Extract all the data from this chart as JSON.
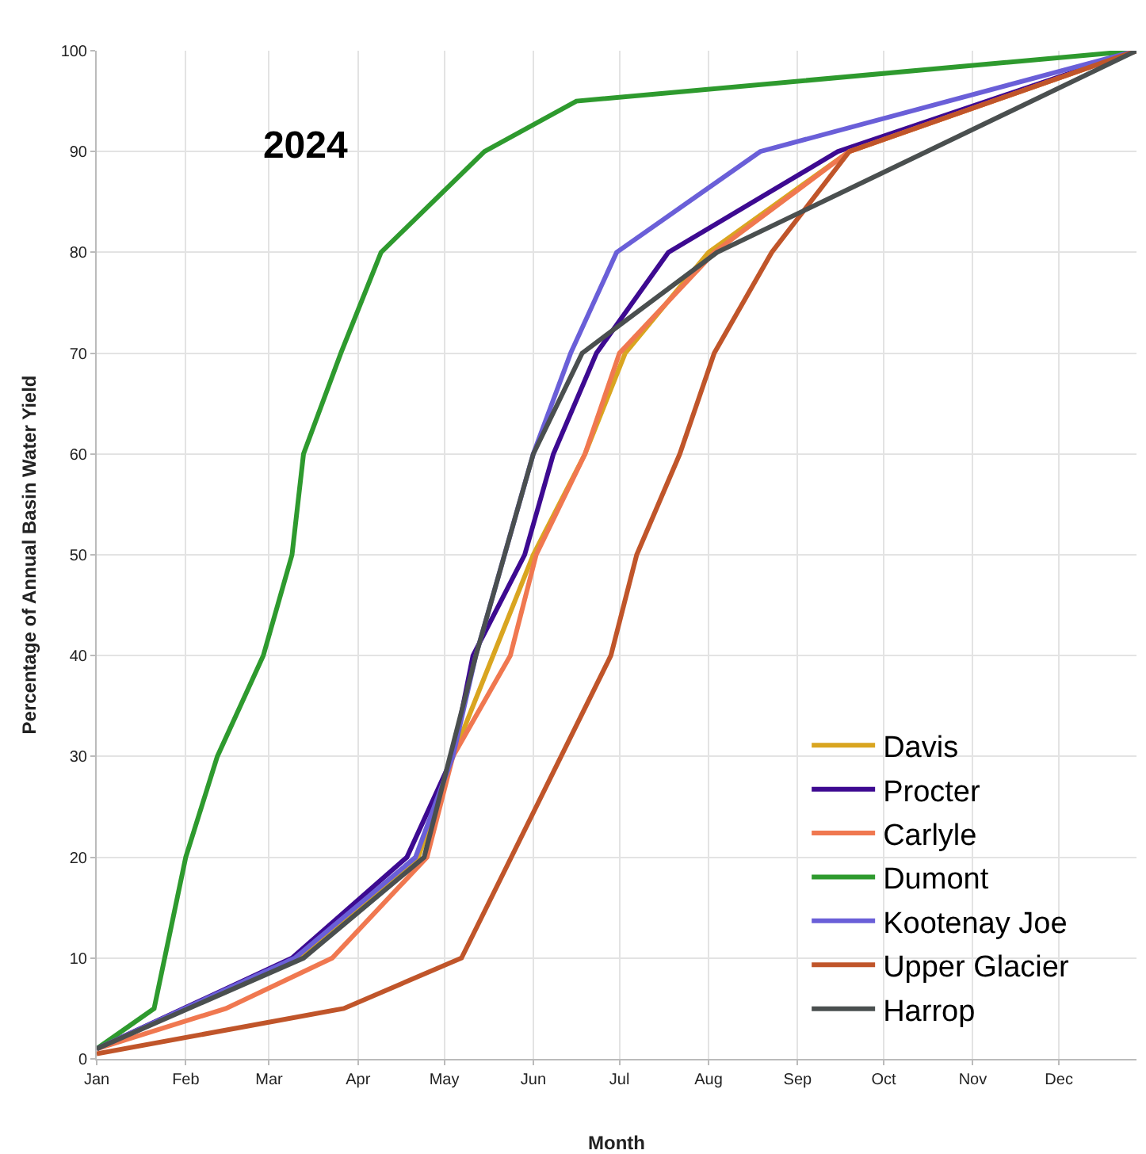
{
  "chart_data": {
    "type": "line",
    "title": "2024",
    "xlabel": "Month",
    "ylabel": "Percentage of Annual Basin Water Yield",
    "xlim": [
      "2024-01-01",
      "2024-12-28"
    ],
    "xticks": [
      {
        "value": "2024-01-01",
        "label": "Jan"
      },
      {
        "value": "2024-02-01",
        "label": "Feb"
      },
      {
        "value": "2024-03-01",
        "label": "Mar"
      },
      {
        "value": "2024-04-01",
        "label": "Apr"
      },
      {
        "value": "2024-05-01",
        "label": "May"
      },
      {
        "value": "2024-06-01",
        "label": "Jun"
      },
      {
        "value": "2024-07-01",
        "label": "Jul"
      },
      {
        "value": "2024-08-01",
        "label": "Aug"
      },
      {
        "value": "2024-09-01",
        "label": "Sep"
      },
      {
        "value": "2024-10-01",
        "label": "Oct"
      },
      {
        "value": "2024-11-01",
        "label": "Nov"
      },
      {
        "value": "2024-12-01",
        "label": "Dec"
      }
    ],
    "ylim": [
      0,
      100
    ],
    "yticks": [
      0,
      10,
      20,
      30,
      40,
      50,
      60,
      70,
      80,
      90,
      100
    ],
    "grid": true,
    "legend": "bottom right",
    "marker": "none",
    "line_style": "solid",
    "series": [
      {
        "name": "Davis",
        "color": "#d9a520",
        "x": [
          "2024-01-01",
          "2024-03-11",
          "2024-04-22",
          "2024-05-04",
          "2024-06-01",
          "2024-06-19",
          "2024-07-03",
          "2024-08-01",
          "2024-09-19",
          "2024-12-28"
        ],
        "values": [
          1,
          10,
          20,
          30,
          50,
          60,
          70,
          80,
          90,
          100
        ]
      },
      {
        "name": "Procter",
        "color": "#3d0a91",
        "x": [
          "2024-01-01",
          "2024-03-09",
          "2024-04-18",
          "2024-05-04",
          "2024-05-11",
          "2024-05-29",
          "2024-06-08",
          "2024-06-23",
          "2024-07-18",
          "2024-09-15",
          "2024-12-28"
        ],
        "values": [
          1,
          10,
          20,
          30,
          40,
          50,
          60,
          70,
          80,
          90,
          100
        ]
      },
      {
        "name": "Carlyle",
        "color": "#f07850",
        "x": [
          "2024-01-01",
          "2024-02-15",
          "2024-03-23",
          "2024-04-25",
          "2024-05-04",
          "2024-05-24",
          "2024-06-02",
          "2024-06-19",
          "2024-07-01",
          "2024-08-03",
          "2024-09-19",
          "2024-12-28"
        ],
        "values": [
          1,
          5,
          10,
          20,
          30,
          40,
          50,
          60,
          70,
          80,
          90,
          100
        ]
      },
      {
        "name": "Dumont",
        "color": "#2e9a2e",
        "x": [
          "2024-01-01",
          "2024-01-21",
          "2024-02-01",
          "2024-02-12",
          "2024-02-28",
          "2024-03-09",
          "2024-03-13",
          "2024-03-26",
          "2024-04-09",
          "2024-05-15",
          "2024-06-16",
          "2024-12-28"
        ],
        "values": [
          1,
          5,
          20,
          30,
          40,
          50,
          60,
          70,
          80,
          90,
          95,
          100
        ]
      },
      {
        "name": "Kootenay Joe",
        "color": "#6a5fd8",
        "x": [
          "2024-01-01",
          "2024-03-10",
          "2024-04-21",
          "2024-05-04",
          "2024-05-12",
          "2024-06-01",
          "2024-06-14",
          "2024-06-30",
          "2024-08-19",
          "2024-12-28"
        ],
        "values": [
          1,
          10,
          20,
          30,
          40,
          60,
          70,
          80,
          90,
          100
        ]
      },
      {
        "name": "Upper Glacier",
        "color": "#c0552a",
        "x": [
          "2024-01-01",
          "2024-03-27",
          "2024-05-07",
          "2024-06-28",
          "2024-07-07",
          "2024-07-22",
          "2024-08-03",
          "2024-08-23",
          "2024-09-19",
          "2024-12-28"
        ],
        "values": [
          0.5,
          5,
          10,
          40,
          50,
          60,
          70,
          80,
          90,
          100
        ]
      },
      {
        "name": "Harrop",
        "color": "#4a4f4f",
        "x": [
          "2024-01-01",
          "2024-03-13",
          "2024-04-24",
          "2024-05-12",
          "2024-06-01",
          "2024-06-18",
          "2024-08-04",
          "2024-12-28"
        ],
        "values": [
          1,
          10,
          20,
          40,
          60,
          70,
          80,
          100
        ]
      }
    ]
  }
}
